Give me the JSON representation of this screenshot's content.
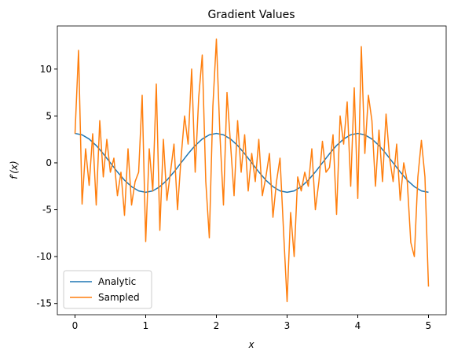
{
  "chart_data": {
    "type": "line",
    "title": "Gradient Values",
    "x_label": "x",
    "y_label": "f′(x)",
    "xlim": [
      -0.25,
      5.25
    ],
    "ylim": [
      -16.2,
      14.6
    ],
    "xticks": [
      0,
      1,
      2,
      3,
      4,
      5
    ],
    "yticks": [
      -15,
      -10,
      -5,
      0,
      5,
      10
    ],
    "legend": "lower left",
    "grid": false,
    "series": [
      {
        "name": "Analytic",
        "color": "#1f77b4",
        "x": [
          0,
          0.1,
          0.2,
          0.3,
          0.4,
          0.5,
          0.6,
          0.7,
          0.8,
          0.9,
          1,
          1.1,
          1.2,
          1.3,
          1.4,
          1.5,
          1.6,
          1.7,
          1.8,
          1.9,
          2,
          2.1,
          2.2,
          2.3,
          2.4,
          2.5,
          2.6,
          2.7,
          2.8,
          2.9,
          3,
          3.1,
          3.2,
          3.3,
          3.4,
          3.5,
          3.6,
          3.7,
          3.8,
          3.9,
          4,
          4.1,
          4.2,
          4.3,
          4.4,
          4.5,
          4.6,
          4.7,
          4.8,
          4.9,
          5
        ],
        "values": [
          3.14,
          2.99,
          2.54,
          1.85,
          0.97,
          0,
          -0.97,
          -1.85,
          -2.54,
          -2.99,
          -3.14,
          -2.99,
          -2.54,
          -1.85,
          -0.97,
          0,
          0.97,
          1.85,
          2.54,
          2.99,
          3.14,
          2.99,
          2.54,
          1.85,
          0.97,
          0,
          -0.97,
          -1.85,
          -2.54,
          -2.99,
          -3.14,
          -2.99,
          -2.54,
          -1.85,
          -0.97,
          0,
          0.97,
          1.85,
          2.54,
          2.99,
          3.14,
          2.99,
          2.54,
          1.85,
          0.97,
          0,
          -0.97,
          -1.85,
          -2.54,
          -2.99,
          -3.14
        ]
      },
      {
        "name": "Sampled",
        "color": "#ff7f0e",
        "x": [
          0,
          0.05,
          0.1,
          0.15,
          0.2,
          0.25,
          0.3,
          0.35,
          0.4,
          0.45,
          0.5,
          0.55,
          0.6,
          0.65,
          0.7,
          0.75,
          0.8,
          0.85,
          0.9,
          0.95,
          1,
          1.05,
          1.1,
          1.15,
          1.2,
          1.25,
          1.3,
          1.35,
          1.4,
          1.45,
          1.5,
          1.55,
          1.6,
          1.65,
          1.7,
          1.75,
          1.8,
          1.85,
          1.9,
          1.95,
          2,
          2.05,
          2.1,
          2.15,
          2.2,
          2.25,
          2.3,
          2.35,
          2.4,
          2.45,
          2.5,
          2.55,
          2.6,
          2.65,
          2.7,
          2.75,
          2.8,
          2.85,
          2.9,
          2.95,
          3,
          3.05,
          3.1,
          3.15,
          3.2,
          3.25,
          3.3,
          3.35,
          3.4,
          3.45,
          3.5,
          3.55,
          3.6,
          3.65,
          3.7,
          3.75,
          3.8,
          3.85,
          3.9,
          3.95,
          4,
          4.05,
          4.1,
          4.15,
          4.2,
          4.25,
          4.3,
          4.35,
          4.4,
          4.45,
          4.5,
          4.55,
          4.6,
          4.65,
          4.7,
          4.75,
          4.8,
          4.85,
          4.9,
          4.95,
          5
        ],
        "values": [
          3.1,
          12,
          -4.4,
          1.5,
          -2.4,
          3.1,
          -4.5,
          4.5,
          -1.5,
          2.5,
          -1,
          0.5,
          -3.5,
          -1,
          -5.6,
          1.5,
          -4.5,
          -2,
          -1,
          7.2,
          -8.4,
          1.5,
          -3,
          8.4,
          -7.2,
          2.5,
          -4,
          -1,
          2,
          -5,
          0.5,
          5,
          2,
          10,
          -1,
          7,
          11.5,
          -2,
          -8,
          6,
          13.2,
          3,
          -4.5,
          7.5,
          2,
          -3.5,
          4.5,
          -1,
          3,
          -3,
          1,
          -2,
          2.5,
          -3.5,
          -1.5,
          1,
          -5.8,
          -2,
          0.5,
          -7.3,
          -14.8,
          -5.3,
          -10,
          -1.5,
          -3,
          -1,
          -2.5,
          1.5,
          -5,
          -2,
          2.3,
          -1,
          -0.5,
          3,
          -5.5,
          5,
          2,
          6.5,
          -2.5,
          8,
          -3.8,
          12.4,
          1,
          7.2,
          4.5,
          -2.5,
          3.5,
          -2,
          5.2,
          0.5,
          -2,
          2,
          -4,
          0,
          -2,
          -8.5,
          -10,
          -1.5,
          2.4,
          -1.5,
          -13.2
        ]
      }
    ]
  }
}
